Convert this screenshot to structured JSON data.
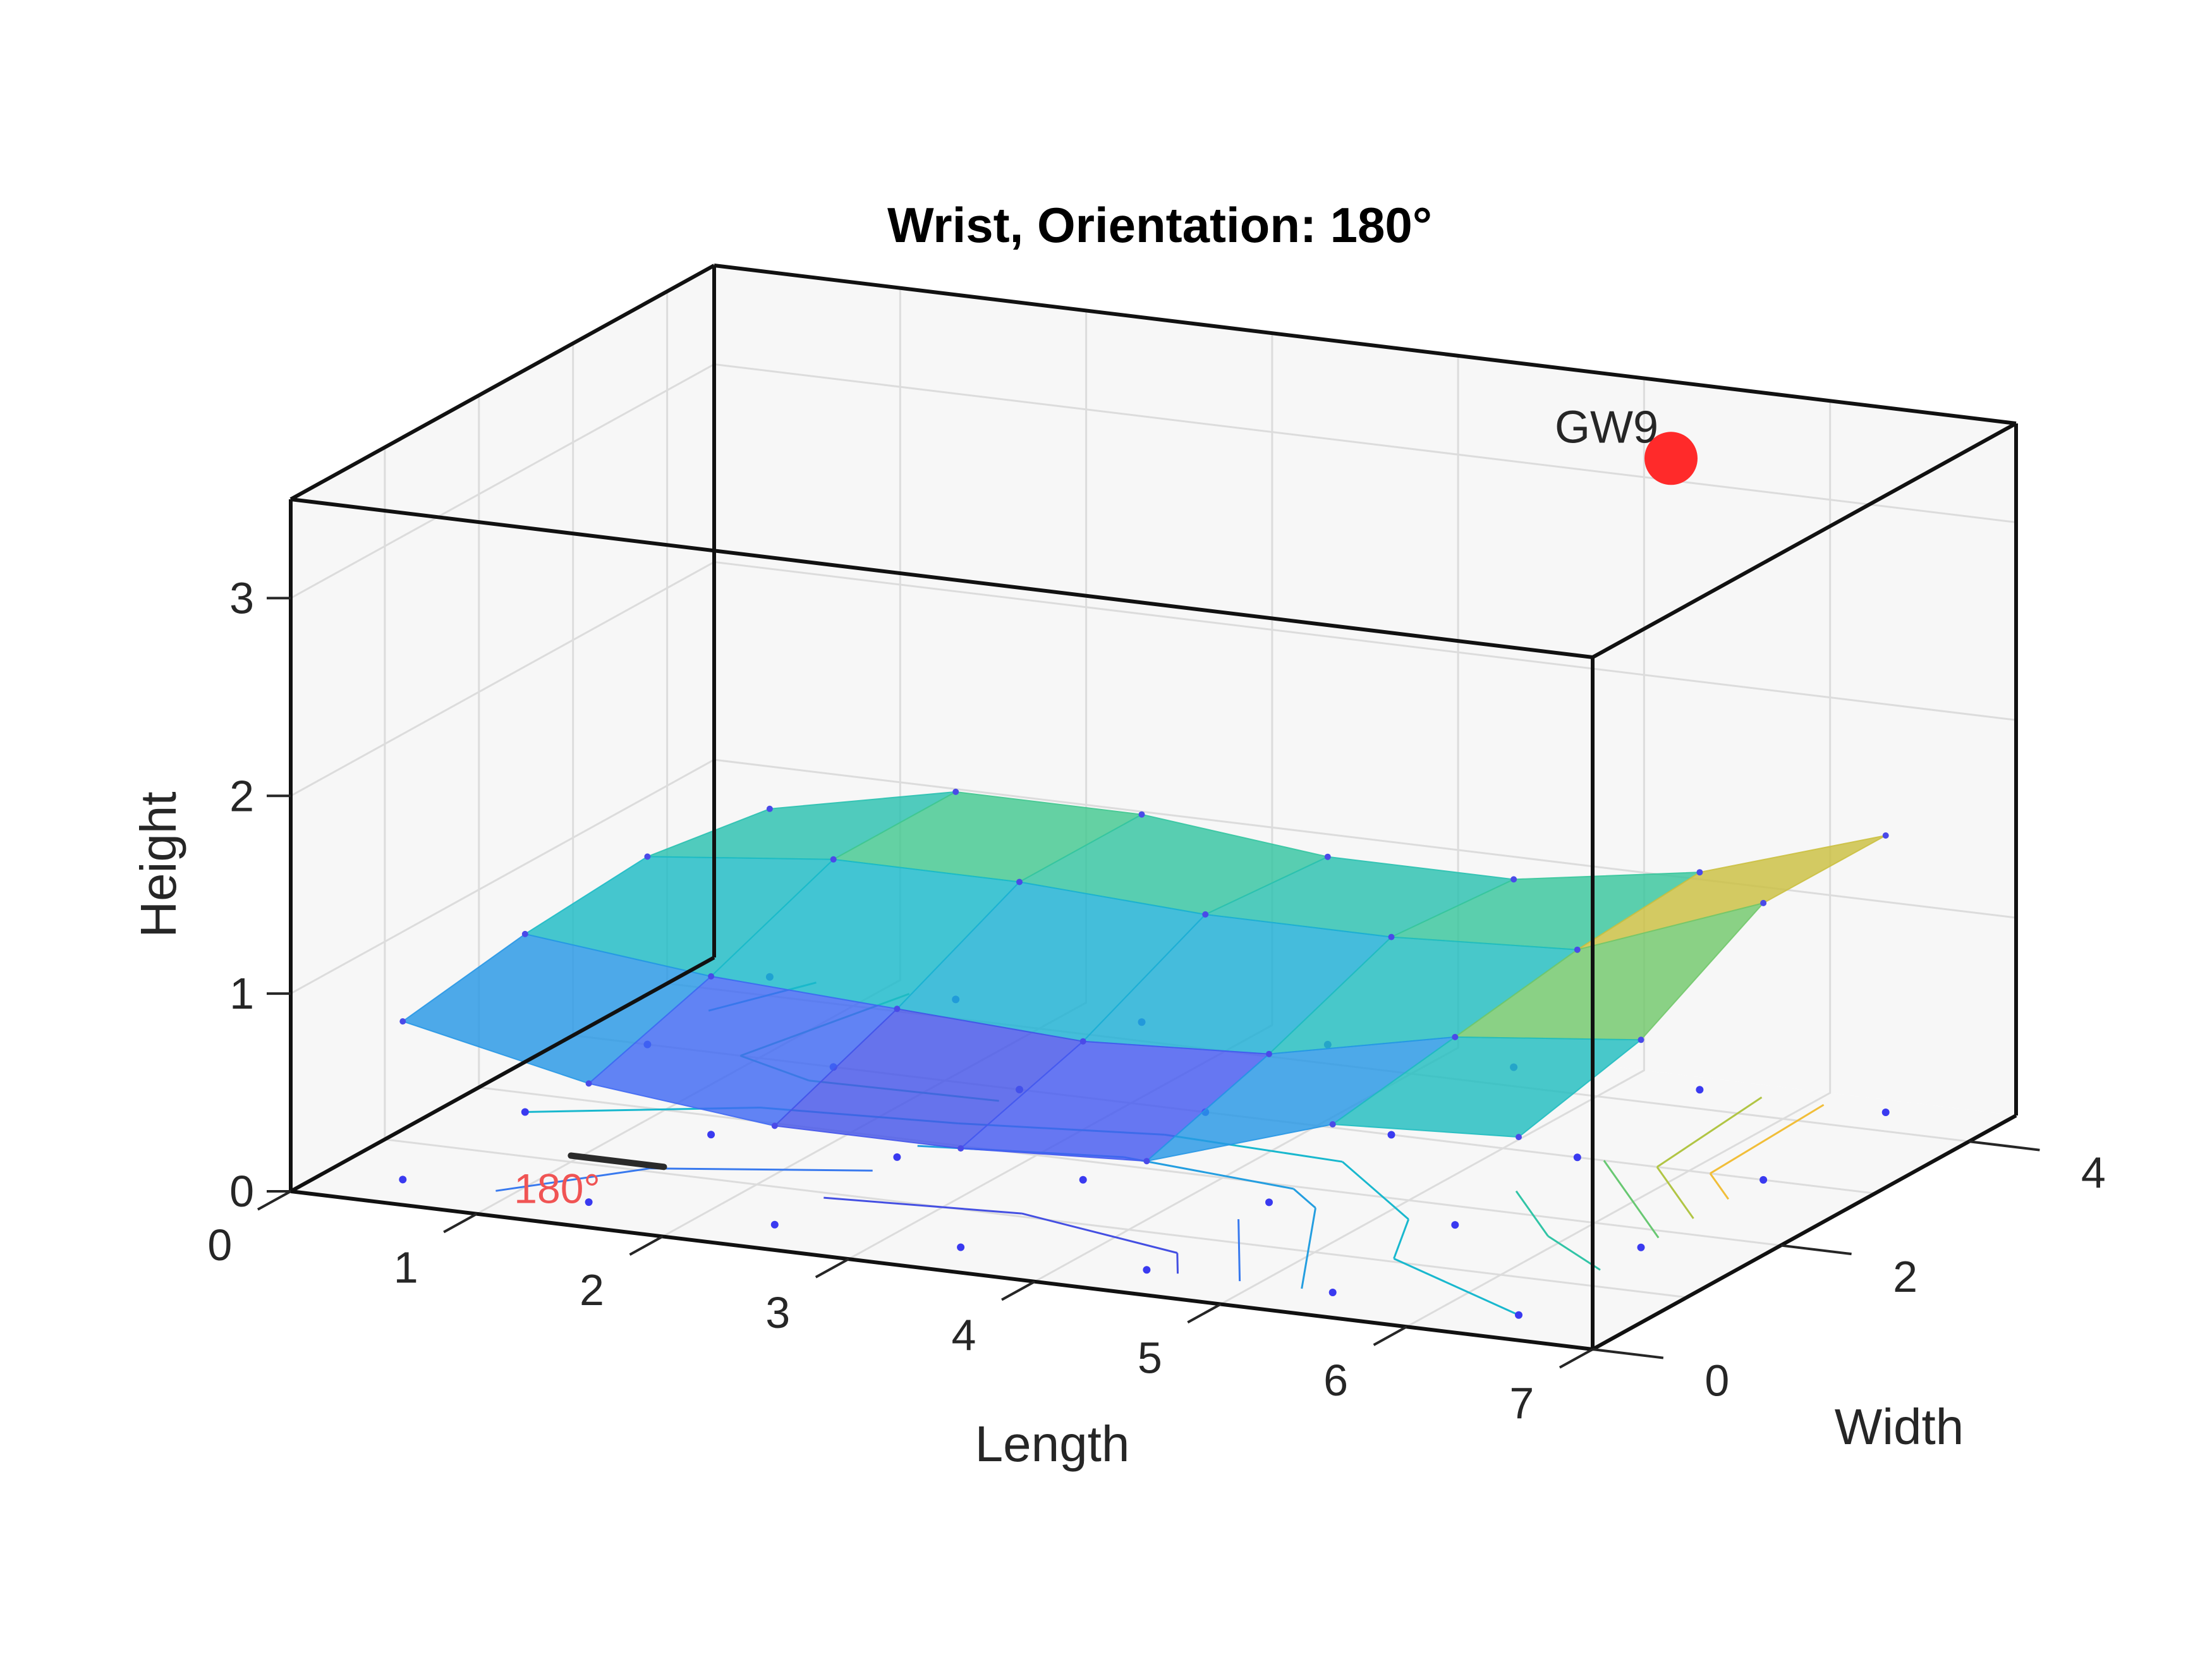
{
  "chart_data": {
    "type": "surface3d",
    "title": "Wrist, Orientation: 180°",
    "xlabel": "Length",
    "ylabel": "Width",
    "zlabel": "Height",
    "xlim": [
      0,
      7
    ],
    "ylim": [
      0,
      4.5
    ],
    "zlim": [
      0,
      3.5
    ],
    "x_ticks": [
      "0",
      "1",
      "2",
      "3",
      "4",
      "5",
      "6",
      "7"
    ],
    "y_ticks": [
      "0",
      "2",
      "4"
    ],
    "z_ticks": [
      "0",
      "1",
      "2",
      "3"
    ],
    "grid": true,
    "colormap": "parula",
    "surface_x": [
      0.4,
      1.4,
      2.4,
      3.4,
      4.4,
      5.4,
      6.4
    ],
    "surface_y": [
      0.4,
      1.7,
      3.0,
      4.3
    ],
    "surface_z": [
      [
        0.8,
        0.6,
        0.5,
        0.5,
        0.55,
        0.85,
        0.9
      ],
      [
        0.9,
        0.8,
        0.75,
        0.7,
        0.75,
        0.95,
        1.05
      ],
      [
        0.95,
        1.05,
        1.05,
        1.0,
        1.0,
        1.05,
        1.4
      ],
      [
        0.85,
        1.05,
        1.05,
        0.95,
        0.95,
        1.1,
        1.4
      ]
    ],
    "marker": {
      "label": "GW9",
      "x": 5.6,
      "y": 3.6,
      "z": 3.4,
      "color": "#ff2a2a"
    },
    "orientation_indicator": {
      "label": "180°",
      "color": "#f05454"
    }
  }
}
